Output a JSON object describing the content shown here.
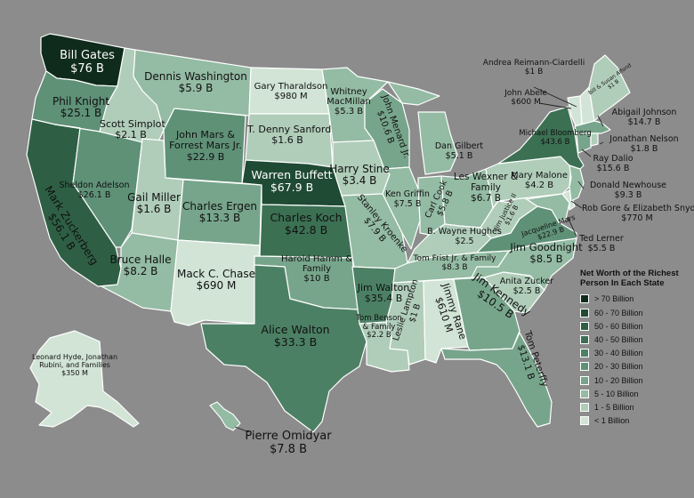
{
  "legend": {
    "title": "Net Worth of the Richest Person In Each State",
    "items": [
      {
        "label": "> 70 Billion",
        "color": "#0f2b1c"
      },
      {
        "label": "60 - 70 Billion",
        "color": "#1f4a33"
      },
      {
        "label": "50 - 60 Billion",
        "color": "#2e5f44"
      },
      {
        "label": "40 - 50 Billion",
        "color": "#3c7053"
      },
      {
        "label": "30 - 40 Billion",
        "color": "#4c8064"
      },
      {
        "label": "20 - 30 Billion",
        "color": "#5f9177"
      },
      {
        "label": "10 - 20 Billion",
        "color": "#77a58b"
      },
      {
        "label": "5 - 10 Billion",
        "color": "#94bba3"
      },
      {
        "label": "1 - 5 Billion",
        "color": "#b0cdb9"
      },
      {
        "label": "< 1 Billion",
        "color": "#d1e4d5"
      }
    ]
  },
  "states": [
    {
      "id": "WA",
      "name": "Bill Gates",
      "value": "$76 B"
    },
    {
      "id": "OR",
      "name": "Phil Knight",
      "value": "$25.1 B"
    },
    {
      "id": "CA",
      "name": "Mark Zuckerberg",
      "value": "$56.1 B"
    },
    {
      "id": "NV",
      "name": "Sheldon Adelson",
      "value": "$26.1 B"
    },
    {
      "id": "ID",
      "name": "Scott Simplot",
      "value": "$2.1 B"
    },
    {
      "id": "MT",
      "name": "Dennis Washington",
      "value": "$5.9 B"
    },
    {
      "id": "WY",
      "name": "John Mars & Forrest Mars Jr.",
      "value": "$22.9 B"
    },
    {
      "id": "UT",
      "name": "Gail Miller",
      "value": "$1.6 B"
    },
    {
      "id": "AZ",
      "name": "Bruce Halle",
      "value": "$8.2 B"
    },
    {
      "id": "CO",
      "name": "Charles Ergen",
      "value": "$13.3 B"
    },
    {
      "id": "NM",
      "name": "Mack C. Chase",
      "value": "$690 M"
    },
    {
      "id": "ND",
      "name": "Gary Tharaldson",
      "value": "$980 M"
    },
    {
      "id": "SD",
      "name": "T. Denny Sanford",
      "value": "$1.6 B"
    },
    {
      "id": "NE",
      "name": "Warren Buffett",
      "value": "$67.9 B"
    },
    {
      "id": "KS",
      "name": "Charles Koch",
      "value": "$42.8 B"
    },
    {
      "id": "OK",
      "name": "Harold Hamm & Family",
      "value": "$10 B"
    },
    {
      "id": "TX",
      "name": "Alice Walton",
      "value": "$33.3 B"
    },
    {
      "id": "MN",
      "name": "Whitney MacMillan",
      "value": "$5.3 B"
    },
    {
      "id": "IA",
      "name": "Harry Stine",
      "value": "$3.4 B"
    },
    {
      "id": "MO",
      "name": "Stanley Kroenke",
      "value": "$7.9 B"
    },
    {
      "id": "AR",
      "name": "Jim Walton",
      "value": "$35.4 B"
    },
    {
      "id": "LA",
      "name": "Tom Benson & Family",
      "value": "$2.2 B"
    },
    {
      "id": "WI",
      "name": "John Menard Jr.",
      "value": "$10.6 B"
    },
    {
      "id": "IL",
      "name": "Ken Griffin",
      "value": "$7.5 B"
    },
    {
      "id": "MI",
      "name": "Dan Gilbert",
      "value": "$5.1 B"
    },
    {
      "id": "IN",
      "name": "Carl Cook",
      "value": "$5.8 B"
    },
    {
      "id": "OH",
      "name": "Les Wexner & Family",
      "value": "$6.7 B"
    },
    {
      "id": "KY",
      "name": "B. Wayne Hughes",
      "value": "$2.5"
    },
    {
      "id": "TN",
      "name": "Tom Frist Jr. & Family",
      "value": "$8.3 B"
    },
    {
      "id": "MS",
      "name": "Leslie Lampton",
      "value": "$1 B"
    },
    {
      "id": "AL",
      "name": "Jimmy Rane",
      "value": "$610 M"
    },
    {
      "id": "GA",
      "name": "Jim Kennedy",
      "value": "$10.5 B"
    },
    {
      "id": "FL",
      "name": "Tom Peterffy",
      "value": "$13.1 B"
    },
    {
      "id": "SC",
      "name": "Anita Zucker",
      "value": "$2.5 B"
    },
    {
      "id": "NC",
      "name": "Jim Goodnight",
      "value": "$8.5 B"
    },
    {
      "id": "WV",
      "name": "Jim Justice II",
      "value": "$1.6 B"
    },
    {
      "id": "VA",
      "name": "Jacqueline Mars",
      "value": "$22.9 B"
    },
    {
      "id": "PA",
      "name": "Mary Malone",
      "value": "$4.2 B"
    },
    {
      "id": "NY",
      "name": "Michael Bloomberg",
      "value": "$43.6 B"
    },
    {
      "id": "VT",
      "name": "John Abele",
      "value": "$600 M"
    },
    {
      "id": "NH",
      "name": "Andrea Reimann-Ciardelli",
      "value": "$1 B"
    },
    {
      "id": "ME",
      "name": "Bill & Susan Alfond",
      "value": "$1 B"
    },
    {
      "id": "MA",
      "name": "Abigail Johnson",
      "value": "$14.7 B"
    },
    {
      "id": "RI",
      "name": "Jonathan Nelson",
      "value": "$1.8 B"
    },
    {
      "id": "CT",
      "name": "Ray Dalio",
      "value": "$15.6 B"
    },
    {
      "id": "NJ",
      "name": "Donald Newhouse",
      "value": "$9.3 B"
    },
    {
      "id": "DE",
      "name": "Rob Gore & Elizabeth Snyder",
      "value": "$770 M"
    },
    {
      "id": "MD",
      "name": "Ted Lerner",
      "value": "$5.5 B"
    },
    {
      "id": "AK",
      "name": "Leonard Hyde, Jonathan Rubini, and Families",
      "value": "$350 M"
    },
    {
      "id": "HI",
      "name": "Pierre Omidyar",
      "value": "$7.8 B"
    }
  ]
}
